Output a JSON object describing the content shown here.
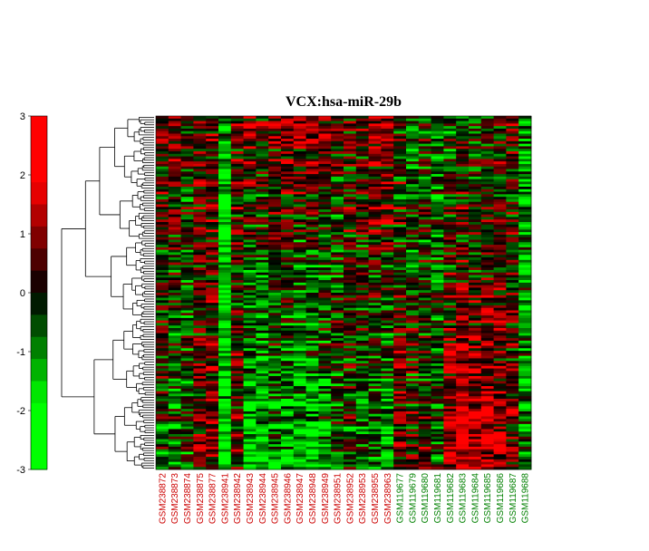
{
  "chart_data": {
    "type": "heatmap",
    "title": "VCX:hsa-miR-29b",
    "colorbar": {
      "ticks": [
        "3",
        "2",
        "1",
        "0",
        "-1",
        "-2",
        "-3"
      ],
      "vmin": -3,
      "vmax": 3,
      "colors": {
        "low": "#00ff00",
        "mid": "#000000",
        "high": "#ff0000"
      }
    },
    "samples": [
      {
        "name": "GSM238872",
        "group_color": "#cc0000"
      },
      {
        "name": "GSM238873",
        "group_color": "#cc0000"
      },
      {
        "name": "GSM238874",
        "group_color": "#cc0000"
      },
      {
        "name": "GSM238875",
        "group_color": "#cc0000"
      },
      {
        "name": "GSM238877",
        "group_color": "#cc0000"
      },
      {
        "name": "GSM238941",
        "group_color": "#cc0000"
      },
      {
        "name": "GSM238942",
        "group_color": "#cc0000"
      },
      {
        "name": "GSM238943",
        "group_color": "#cc0000"
      },
      {
        "name": "GSM238944",
        "group_color": "#cc0000"
      },
      {
        "name": "GSM238945",
        "group_color": "#cc0000"
      },
      {
        "name": "GSM238946",
        "group_color": "#cc0000"
      },
      {
        "name": "GSM238947",
        "group_color": "#cc0000"
      },
      {
        "name": "GSM238948",
        "group_color": "#cc0000"
      },
      {
        "name": "GSM238949",
        "group_color": "#cc0000"
      },
      {
        "name": "GSM238951",
        "group_color": "#cc0000"
      },
      {
        "name": "GSM238952",
        "group_color": "#cc0000"
      },
      {
        "name": "GSM238953",
        "group_color": "#cc0000"
      },
      {
        "name": "GSM238955",
        "group_color": "#cc0000"
      },
      {
        "name": "GSM238963",
        "group_color": "#cc0000"
      },
      {
        "name": "GSM119677",
        "group_color": "#008000"
      },
      {
        "name": "GSM119679",
        "group_color": "#008000"
      },
      {
        "name": "GSM119680",
        "group_color": "#008000"
      },
      {
        "name": "GSM119681",
        "group_color": "#008000"
      },
      {
        "name": "GSM119682",
        "group_color": "#008000"
      },
      {
        "name": "GSM119683",
        "group_color": "#008000"
      },
      {
        "name": "GSM119684",
        "group_color": "#008000"
      },
      {
        "name": "GSM119685",
        "group_color": "#008000"
      },
      {
        "name": "GSM119686",
        "group_color": "#008000"
      },
      {
        "name": "GSM119687",
        "group_color": "#008000"
      },
      {
        "name": "GSM119688",
        "group_color": "#008000"
      }
    ],
    "column_profiles": [
      {
        "top": 0.5,
        "bottom": -0.5
      },
      {
        "top": 0.6,
        "bottom": -0.8
      },
      {
        "top": -0.2,
        "bottom": -0.4
      },
      {
        "top": 0.3,
        "bottom": 0.4
      },
      {
        "top": 0.6,
        "bottom": 0.8
      },
      {
        "top": -1.5,
        "bottom": -2.0
      },
      {
        "top": 0.3,
        "bottom": 0.3
      },
      {
        "top": 0.8,
        "bottom": -1.8
      },
      {
        "top": 0.4,
        "bottom": -1.8
      },
      {
        "top": 0.6,
        "bottom": -1.0
      },
      {
        "top": 1.0,
        "bottom": -1.4
      },
      {
        "top": 0.8,
        "bottom": -1.8
      },
      {
        "top": 0.9,
        "bottom": -1.9
      },
      {
        "top": 0.6,
        "bottom": -1.3
      },
      {
        "top": 0.0,
        "bottom": -0.6
      },
      {
        "top": 0.4,
        "bottom": -0.4
      },
      {
        "top": 0.3,
        "bottom": -0.8
      },
      {
        "top": 1.0,
        "bottom": -1.0
      },
      {
        "top": 1.3,
        "bottom": -1.8
      },
      {
        "top": -0.2,
        "bottom": 0.8
      },
      {
        "top": -1.0,
        "bottom": 0.6
      },
      {
        "top": -0.4,
        "bottom": 0.2
      },
      {
        "top": -0.8,
        "bottom": -0.4
      },
      {
        "top": -0.6,
        "bottom": 1.3
      },
      {
        "top": -0.4,
        "bottom": 1.8
      },
      {
        "top": -0.8,
        "bottom": 1.6
      },
      {
        "top": -0.3,
        "bottom": 1.8
      },
      {
        "top": -0.2,
        "bottom": 1.2
      },
      {
        "top": 0.2,
        "bottom": 0.4
      },
      {
        "top": -1.2,
        "bottom": -0.8
      }
    ],
    "n_rows": 140,
    "row_dendrogram": true
  }
}
